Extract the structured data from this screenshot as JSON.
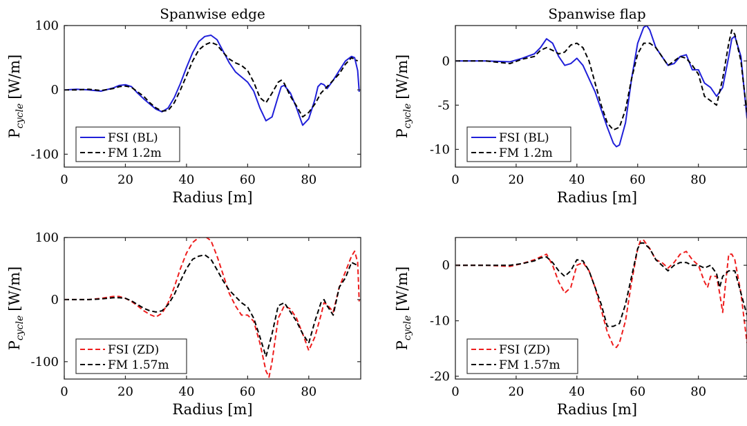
{
  "chart_data": [
    {
      "type": "line",
      "title": "Spanwise edge",
      "xlabel": "Radius [m]",
      "ylabel_main": "P",
      "ylabel_sub": "cycle",
      "ylabel_unit": "[W/m]",
      "xlim": [
        0,
        97
      ],
      "ylim": [
        -120,
        100
      ],
      "xticks": [
        0,
        20,
        40,
        60,
        80
      ],
      "yticks": [
        -100,
        0,
        100
      ],
      "grid": false,
      "legend_position": "bottom-left",
      "series": [
        {
          "name": "FSI (BL)",
          "color": "#1f1fd9",
          "dash": "solid",
          "x": [
            0,
            4,
            8,
            12,
            16,
            18,
            20,
            22,
            24,
            26,
            28,
            30,
            32,
            34,
            36,
            38,
            40,
            42,
            44,
            46,
            48,
            50,
            52,
            54,
            56,
            58,
            60,
            62,
            64,
            66,
            68,
            70,
            71,
            72,
            74,
            76,
            78,
            80,
            82,
            83,
            84,
            85,
            86,
            88,
            90,
            92,
            94,
            95,
            96,
            96.5
          ],
          "y": [
            0,
            1,
            0,
            -2,
            3,
            7,
            8,
            5,
            -5,
            -14,
            -22,
            -30,
            -34,
            -28,
            -12,
            10,
            35,
            58,
            75,
            83,
            85,
            78,
            60,
            42,
            28,
            20,
            12,
            -2,
            -28,
            -48,
            -42,
            -10,
            5,
            7,
            -5,
            -28,
            -55,
            -45,
            -15,
            5,
            10,
            8,
            2,
            15,
            30,
            45,
            52,
            50,
            30,
            -3
          ]
        },
        {
          "name": "FM 1.2m",
          "color": "#000000",
          "dash": "dashed",
          "x": [
            0,
            4,
            8,
            12,
            16,
            18,
            20,
            22,
            24,
            26,
            28,
            30,
            32,
            34,
            36,
            38,
            40,
            42,
            44,
            46,
            48,
            50,
            52,
            54,
            56,
            58,
            60,
            62,
            64,
            66,
            68,
            70,
            71,
            72,
            74,
            76,
            78,
            80,
            82,
            84,
            86,
            88,
            90,
            92,
            94,
            96
          ],
          "y": [
            0,
            0,
            1,
            -1,
            2,
            5,
            6,
            4,
            -3,
            -10,
            -20,
            -28,
            -33,
            -32,
            -20,
            0,
            22,
            45,
            62,
            70,
            74,
            70,
            58,
            48,
            42,
            38,
            30,
            12,
            -12,
            -20,
            -5,
            12,
            15,
            10,
            -10,
            -25,
            -42,
            -35,
            -22,
            -5,
            5,
            15,
            25,
            40,
            50,
            45
          ]
        }
      ]
    },
    {
      "type": "line",
      "title": "Spanwise flap",
      "xlabel": "Radius [m]",
      "ylabel_main": "P",
      "ylabel_sub": "cycle",
      "ylabel_unit": "[W/m]",
      "xlim": [
        0,
        96
      ],
      "ylim": [
        -12,
        4
      ],
      "xticks": [
        0,
        20,
        40,
        60,
        80
      ],
      "yticks": [
        -10,
        -5,
        0
      ],
      "grid": false,
      "legend_position": "bottom-left",
      "series": [
        {
          "name": "FSI (BL)",
          "color": "#1f1fd9",
          "dash": "solid",
          "x": [
            0,
            10,
            18,
            22,
            26,
            28,
            30,
            32,
            34,
            36,
            38,
            40,
            42,
            44,
            46,
            48,
            50,
            52,
            53,
            54,
            56,
            58,
            60,
            62,
            63,
            64,
            66,
            68,
            70,
            72,
            74,
            76,
            78,
            80,
            82,
            84,
            86,
            88,
            90,
            91,
            92,
            94,
            96
          ],
          "y": [
            0,
            0,
            -0.1,
            0.3,
            0.8,
            1.5,
            2.5,
            2.0,
            0.5,
            -0.5,
            -0.3,
            0.3,
            -0.5,
            -2.0,
            -3.5,
            -5.5,
            -7.5,
            -9.3,
            -9.7,
            -9.5,
            -7.0,
            -2.0,
            2.0,
            3.8,
            4.0,
            3.5,
            1.5,
            0.5,
            -0.5,
            -0.3,
            0.5,
            0.7,
            -1.0,
            -1.0,
            -2.5,
            -3.0,
            -4.0,
            -3.0,
            0.5,
            2.5,
            2.8,
            0.5,
            -6.5
          ]
        },
        {
          "name": "FM 1.2m",
          "color": "#000000",
          "dash": "dashed",
          "x": [
            0,
            10,
            18,
            22,
            26,
            28,
            30,
            32,
            34,
            36,
            38,
            40,
            42,
            44,
            46,
            48,
            50,
            52,
            54,
            56,
            58,
            60,
            62,
            64,
            66,
            68,
            70,
            72,
            74,
            76,
            78,
            80,
            82,
            84,
            86,
            88,
            90,
            91,
            92,
            94,
            96
          ],
          "y": [
            0,
            0,
            -0.3,
            0.2,
            0.5,
            1.2,
            1.5,
            1.2,
            0.8,
            1.0,
            1.8,
            2.0,
            1.5,
            0.0,
            -2.5,
            -5.0,
            -7.0,
            -7.8,
            -7.5,
            -5.5,
            -2.0,
            0.8,
            2.0,
            2.0,
            1.5,
            0.5,
            -0.5,
            0.0,
            0.5,
            0.3,
            -0.5,
            -1.5,
            -4.0,
            -4.5,
            -5.0,
            -2.0,
            2.0,
            3.5,
            3.0,
            0.0,
            -6.0
          ]
        }
      ]
    },
    {
      "type": "line",
      "title": "",
      "xlabel": "Radius [m]",
      "ylabel_main": "P",
      "ylabel_sub": "cycle",
      "ylabel_unit": "[W/m]",
      "xlim": [
        0,
        97
      ],
      "ylim": [
        -128,
        100
      ],
      "xticks": [
        0,
        20,
        40,
        60,
        80
      ],
      "yticks": [
        -100,
        0,
        100
      ],
      "grid": false,
      "legend_position": "bottom-left",
      "series": [
        {
          "name": "FSI (ZD)",
          "color": "#ee1c1c",
          "dash": "dashed",
          "x": [
            0,
            4,
            8,
            12,
            16,
            18,
            20,
            22,
            24,
            26,
            28,
            30,
            32,
            34,
            36,
            38,
            40,
            42,
            44,
            46,
            48,
            50,
            52,
            54,
            56,
            58,
            60,
            62,
            64,
            66,
            67,
            68,
            70,
            72,
            74,
            76,
            78,
            80,
            82,
            84,
            85,
            86,
            88,
            90,
            92,
            94,
            95,
            96,
            96.5
          ],
          "y": [
            0,
            0,
            0,
            2,
            5,
            5,
            2,
            -3,
            -10,
            -18,
            -24,
            -28,
            -22,
            -5,
            20,
            50,
            75,
            92,
            100,
            102,
            95,
            70,
            40,
            10,
            -10,
            -25,
            -25,
            -35,
            -70,
            -115,
            -125,
            -100,
            -30,
            -10,
            -15,
            -30,
            -55,
            -82,
            -60,
            -25,
            -5,
            -8,
            -20,
            20,
            45,
            70,
            78,
            60,
            -3
          ]
        },
        {
          "name": "FM 1.57m",
          "color": "#000000",
          "dash": "dashed",
          "x": [
            0,
            4,
            8,
            12,
            16,
            18,
            20,
            22,
            24,
            26,
            28,
            30,
            32,
            34,
            36,
            38,
            40,
            42,
            44,
            46,
            48,
            50,
            52,
            54,
            56,
            58,
            60,
            62,
            64,
            66,
            68,
            70,
            72,
            74,
            76,
            78,
            80,
            82,
            84,
            85,
            86,
            88,
            90,
            92,
            94,
            96
          ],
          "y": [
            0,
            0,
            0,
            1,
            3,
            3,
            2,
            -2,
            -8,
            -14,
            -18,
            -20,
            -18,
            -8,
            8,
            30,
            50,
            65,
            70,
            72,
            65,
            48,
            30,
            15,
            5,
            -5,
            -12,
            -30,
            -60,
            -92,
            -55,
            -10,
            -5,
            -20,
            -35,
            -55,
            -70,
            -35,
            -5,
            0,
            -10,
            -25,
            20,
            35,
            60,
            55
          ]
        }
      ]
    },
    {
      "type": "line",
      "title": "",
      "xlabel": "Radius [m]",
      "ylabel_main": "P",
      "ylabel_sub": "cycle",
      "ylabel_unit": "[W/m]",
      "xlim": [
        0,
        96
      ],
      "ylim": [
        -20.5,
        5
      ],
      "xticks": [
        0,
        20,
        40,
        60,
        80
      ],
      "yticks": [
        -20,
        -10,
        0
      ],
      "grid": false,
      "legend_position": "bottom-left",
      "series": [
        {
          "name": "FSI (ZD)",
          "color": "#ee1c1c",
          "dash": "dashed",
          "x": [
            0,
            10,
            18,
            22,
            26,
            28,
            30,
            32,
            34,
            36,
            38,
            40,
            42,
            44,
            46,
            48,
            50,
            52,
            53,
            54,
            56,
            58,
            60,
            61,
            62,
            64,
            66,
            68,
            70,
            72,
            74,
            76,
            78,
            80,
            82,
            83,
            84,
            86,
            87,
            88,
            89,
            90,
            91,
            92,
            94,
            96
          ],
          "y": [
            0,
            0,
            -0.2,
            0.3,
            1.0,
            1.5,
            2.0,
            0,
            -3.0,
            -5.0,
            -4.0,
            0,
            0.5,
            -1.0,
            -4.0,
            -8.0,
            -12.0,
            -14.5,
            -14.8,
            -14.0,
            -10.0,
            -3.0,
            3.0,
            4.5,
            4.5,
            3.0,
            1.0,
            0.5,
            -0.5,
            0.5,
            2.0,
            2.5,
            1.0,
            0,
            -3.0,
            -4.0,
            -2.0,
            -2.0,
            -5.0,
            -8.5,
            -3.0,
            2.0,
            2.0,
            1.0,
            -5.0,
            -14.0
          ]
        },
        {
          "name": "FM 1.57m",
          "color": "#000000",
          "dash": "dashed",
          "x": [
            0,
            10,
            18,
            22,
            26,
            28,
            30,
            32,
            34,
            36,
            38,
            40,
            42,
            44,
            46,
            48,
            50,
            52,
            54,
            56,
            58,
            60,
            61,
            62,
            64,
            66,
            68,
            70,
            72,
            74,
            76,
            78,
            80,
            82,
            84,
            86,
            87,
            88,
            89,
            90,
            92,
            94,
            96
          ],
          "y": [
            0,
            0,
            0,
            0.3,
            0.8,
            1.3,
            1.5,
            0.5,
            -1.0,
            -2.0,
            -1.0,
            1.0,
            0.8,
            -1.0,
            -4.0,
            -7.0,
            -11.0,
            -11.0,
            -10.5,
            -7.0,
            -2.0,
            3.0,
            4.0,
            4.0,
            3.0,
            1.0,
            0,
            -1.0,
            0,
            0.5,
            0.5,
            0,
            0,
            -0.5,
            0,
            -1.5,
            -4.0,
            -2.0,
            -1.5,
            -1.0,
            -1.0,
            -5.0,
            -9.0
          ]
        }
      ]
    }
  ]
}
